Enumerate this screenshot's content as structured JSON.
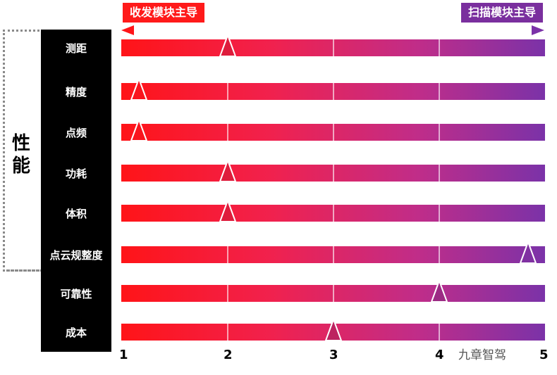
{
  "header": {
    "left_label": "收发模块主导",
    "right_label": "扫描模块主导"
  },
  "group_label": "性能",
  "dimensions": [
    {
      "label": "测距",
      "score": 2.0
    },
    {
      "label": "精度",
      "score": 1.15
    },
    {
      "label": "点频",
      "score": 1.15
    },
    {
      "label": "功耗",
      "score": 2.0
    },
    {
      "label": "体积",
      "score": 2.0
    },
    {
      "label": "点云规整度",
      "score": 4.85
    },
    {
      "label": "可靠性",
      "score": 4.0
    },
    {
      "label": "成本",
      "score": 3.0
    }
  ],
  "scale": [
    "1",
    "2",
    "3",
    "4",
    "5"
  ],
  "watermark": "九章智驾",
  "colors": {
    "start": "#ff1418",
    "end": "#7b32a8"
  }
}
